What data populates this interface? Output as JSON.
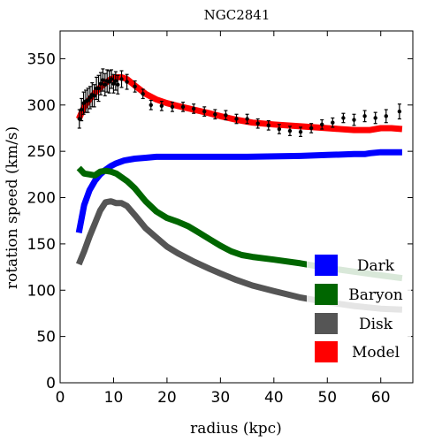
{
  "chart_data": {
    "type": "line",
    "title": "NGC2841",
    "xlabel": "radius (kpc)",
    "ylabel": "rotation speed (km/s)",
    "xlim": [
      0,
      66
    ],
    "ylim": [
      0,
      380
    ],
    "x_ticks": [
      0,
      10,
      20,
      30,
      40,
      50,
      60
    ],
    "y_ticks": [
      0,
      50,
      100,
      150,
      200,
      250,
      300,
      350
    ],
    "grid": false,
    "legend_position": "bottom-right",
    "series": [
      {
        "name": "Dark",
        "color": "#0000ff",
        "x": [
          3.5,
          4.5,
          5.5,
          6.5,
          7.5,
          8.5,
          9.5,
          10.5,
          12,
          14,
          16,
          18,
          20,
          25,
          30,
          35,
          40,
          45,
          50,
          55,
          57,
          58,
          60,
          62,
          64
        ],
        "values": [
          162,
          192,
          208,
          218,
          225,
          230,
          234,
          237,
          240,
          242,
          243,
          244,
          244,
          244,
          244,
          244,
          244.5,
          245,
          246,
          247,
          247,
          248,
          249,
          249,
          249
        ]
      },
      {
        "name": "Baryon",
        "color": "#006600",
        "x": [
          3.5,
          4.5,
          5.5,
          6.5,
          7.5,
          8.5,
          9.5,
          10.5,
          11.5,
          12.5,
          14,
          16,
          18,
          20,
          22,
          24,
          26,
          28,
          30,
          32,
          34,
          36,
          40,
          45,
          50,
          55,
          60,
          64
        ],
        "values": [
          232,
          226,
          225,
          224,
          228,
          229,
          228,
          226,
          222,
          218,
          210,
          196,
          185,
          178,
          174,
          169,
          162,
          155,
          148,
          142,
          138,
          136,
          133,
          129,
          124,
          120,
          116,
          113
        ]
      },
      {
        "name": "Disk",
        "color": "#555555",
        "x": [
          3.5,
          4.5,
          5.5,
          6.5,
          7.5,
          8.5,
          9.5,
          10.5,
          11.5,
          12.5,
          14,
          16,
          18,
          20,
          22,
          25,
          28,
          30,
          33,
          36,
          40,
          45,
          50,
          55,
          60,
          64
        ],
        "values": [
          128,
          142,
          158,
          172,
          186,
          195,
          196,
          194,
          194,
          191,
          181,
          167,
          157,
          147,
          140,
          131,
          123,
          118,
          111,
          105,
          99,
          92,
          87,
          83,
          80,
          79
        ]
      },
      {
        "name": "Model",
        "color": "#ff0000",
        "x": [
          3.5,
          4.5,
          5.5,
          6.5,
          7.5,
          8.5,
          9.5,
          10.5,
          11.5,
          12.5,
          14,
          16,
          18,
          20,
          22,
          25,
          28,
          30,
          33,
          36,
          40,
          45,
          50,
          55,
          58,
          60,
          62,
          64
        ],
        "values": [
          285,
          298,
          306,
          313,
          319,
          324,
          328,
          330,
          330,
          328,
          321,
          312,
          306,
          302,
          299,
          295,
          291,
          288,
          284,
          281,
          279,
          277,
          275,
          273,
          273,
          275,
          275,
          274
        ]
      }
    ],
    "observed": {
      "color": "#000000",
      "x": [
        3.6,
        4.0,
        4.4,
        4.8,
        5.2,
        5.6,
        6.0,
        6.4,
        6.8,
        7.2,
        7.6,
        8.0,
        8.4,
        8.8,
        9.2,
        9.6,
        10.0,
        10.4,
        10.8,
        11.5,
        12.5,
        14,
        15.5,
        17,
        19,
        21,
        23,
        25,
        27,
        29,
        31,
        33,
        35,
        37,
        39,
        41,
        43,
        45,
        47,
        49,
        51,
        53,
        55,
        57,
        59,
        61,
        63.5
      ],
      "y": [
        285,
        295,
        302,
        304,
        305,
        308,
        311,
        310,
        318,
        318,
        323,
        327,
        322,
        326,
        325,
        328,
        323,
        326,
        322,
        328,
        325,
        320,
        312,
        300,
        299,
        298,
        298,
        296,
        293,
        290,
        289,
        285,
        285,
        280,
        278,
        274,
        272,
        271,
        275,
        279,
        281,
        286,
        284,
        288,
        286,
        288,
        293
      ],
      "err": [
        10,
        12,
        12,
        12,
        13,
        12,
        13,
        12,
        12,
        14,
        12,
        12,
        12,
        12,
        12,
        10,
        10,
        10,
        10,
        9,
        8,
        6,
        5,
        5,
        5,
        5,
        5,
        5,
        5,
        5,
        5,
        5,
        5,
        5,
        5,
        5,
        5,
        5,
        5,
        5,
        5,
        5,
        6,
        6,
        6,
        7,
        8
      ]
    }
  }
}
